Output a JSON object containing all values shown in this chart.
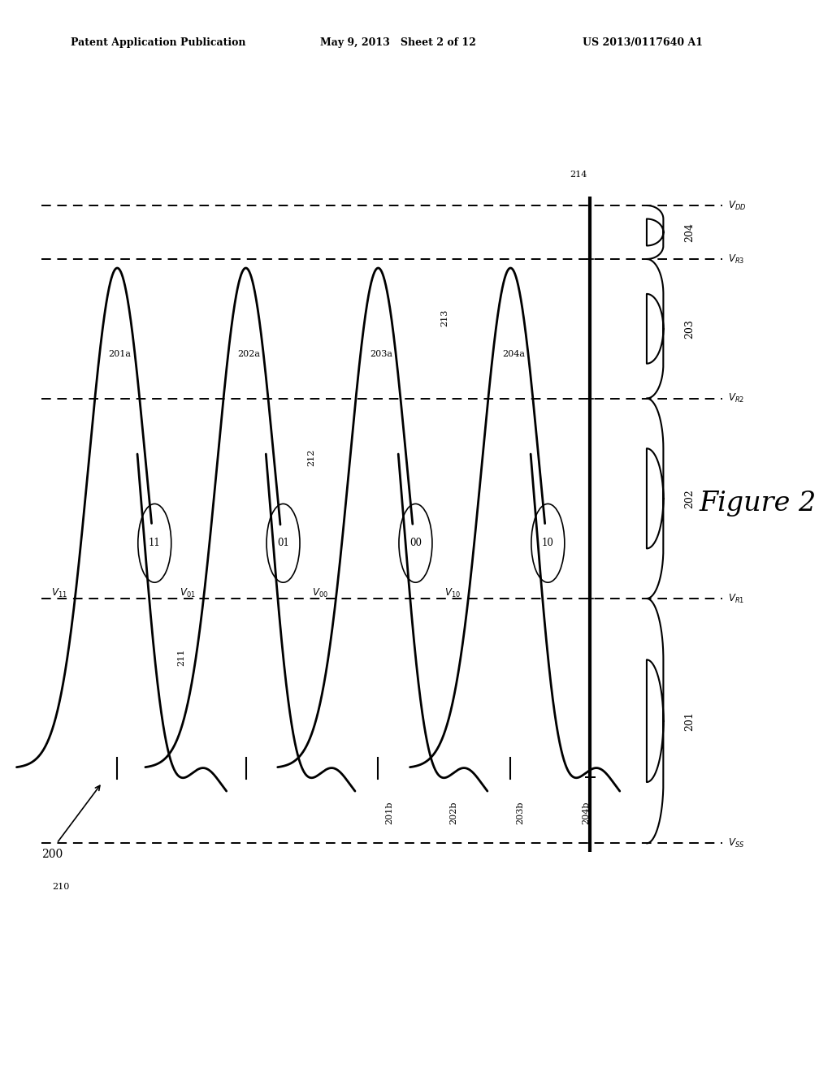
{
  "header_left": "Patent Application Publication",
  "header_mid": "May 9, 2013   Sheet 2 of 12",
  "header_right": "US 2013/0117640 A1",
  "figure_label": "Figure 2",
  "figure_number": "200",
  "bg_color": "#ffffff",
  "xlim": [
    0.0,
    11.0
  ],
  "ylim": [
    -0.5,
    5.5
  ],
  "baseline_y": 1.2,
  "amp": 2.8,
  "sigma": 0.38,
  "distributions": [
    {
      "bit": "11",
      "v_label": "V_{11}",
      "peak_x": 1.55,
      "curve_label": "201a",
      "lower_label": "201b",
      "num": "201"
    },
    {
      "bit": "01",
      "v_label": "V_{01}",
      "peak_x": 3.25,
      "curve_label": "202a",
      "lower_label": "202b",
      "num": "202"
    },
    {
      "bit": "00",
      "v_label": "V_{00}",
      "peak_x": 5.0,
      "curve_label": "203a",
      "lower_label": "203b",
      "num": "203"
    },
    {
      "bit": "10",
      "v_label": "V_{10}",
      "peak_x": 6.75,
      "curve_label": "204a",
      "lower_label": "204b",
      "num": "204"
    }
  ],
  "solid_line_x": 7.8,
  "vr_lines": [
    {
      "x": 2.4,
      "label": "211",
      "vr_label": "V_{R1}"
    },
    {
      "x": 4.12,
      "label": "212",
      "vr_label": "V_{R2}"
    },
    {
      "x": 5.88,
      "label": "213",
      "vr_label": "V_{R3}"
    }
  ],
  "vss_x": 0.85,
  "vss_label": "210",
  "vss_text": "V_{SS}",
  "vss_dashed_y": 0.78,
  "vdd_label": "214",
  "vdd_text": "V_{DD}",
  "vdd_dashed_y": 4.35,
  "dashed_right_x": 9.55,
  "brace_regions": [
    {
      "label": "201",
      "y_bot": 0.78,
      "y_top": 2.15
    },
    {
      "label": "202",
      "y_bot": 2.15,
      "y_top": 3.27
    },
    {
      "label": "203",
      "y_bot": 3.27,
      "y_top": 4.05
    },
    {
      "label": "204",
      "y_bot": 4.05,
      "y_top": 4.35
    }
  ]
}
